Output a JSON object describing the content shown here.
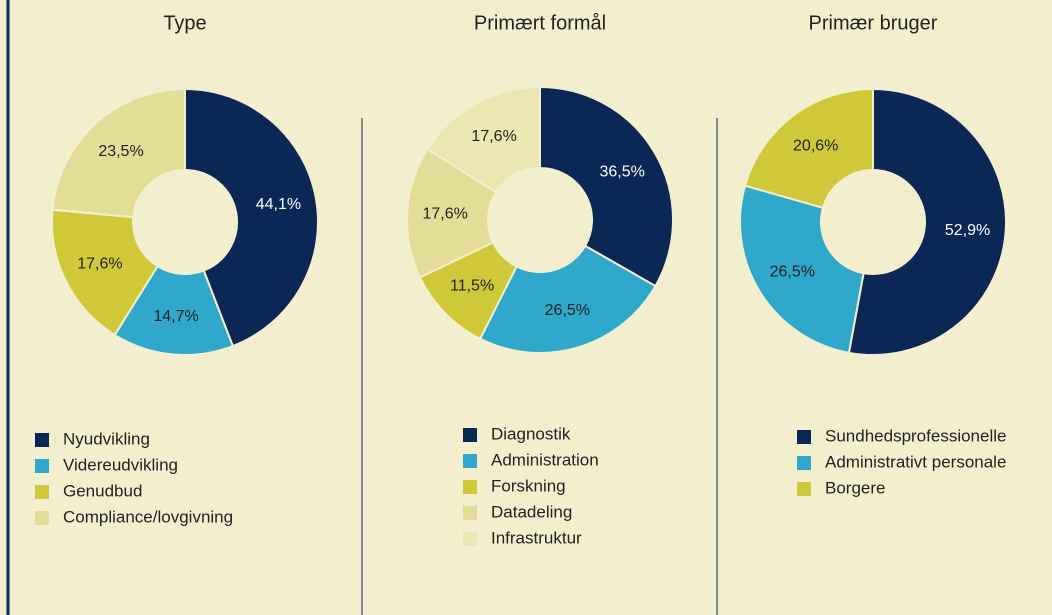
{
  "chart_data": [
    {
      "type": "pie",
      "title": "Type",
      "categories": [
        "Nyudvikling",
        "Videreudvikling",
        "Genudbud",
        "Compliance/lovgivning"
      ],
      "values": [
        44.1,
        14.7,
        17.6,
        23.5
      ],
      "value_labels": [
        "44,1%",
        "14,7%",
        "17,6%",
        "23,5%"
      ],
      "colors": [
        "#0b2756",
        "#2fa8cc",
        "#cfc93a",
        "#e4dd98"
      ]
    },
    {
      "type": "pie",
      "title": "Primært formål",
      "categories": [
        "Diagnostik",
        "Administration",
        "Forskning",
        "Datadeling",
        "Infrastruktur"
      ],
      "values": [
        36.5,
        26.5,
        11.5,
        17.6,
        17.6
      ],
      "value_labels": [
        "36,5%",
        "26,5%",
        "11,5%",
        "17,6%",
        "17,6%"
      ],
      "colors": [
        "#0b2756",
        "#2fa8cc",
        "#cfc93a",
        "#e4dd98",
        "#ebe6b2"
      ]
    },
    {
      "type": "pie",
      "title": "Primær bruger",
      "categories": [
        "Sundhedsprofessionelle",
        "Administrativt personale",
        "Borgere"
      ],
      "values": [
        52.9,
        26.5,
        20.6
      ],
      "value_labels": [
        "52,9%",
        "26,5%",
        "20,6%"
      ],
      "colors": [
        "#0b2756",
        "#2fa8cc",
        "#cfc93a"
      ]
    }
  ]
}
